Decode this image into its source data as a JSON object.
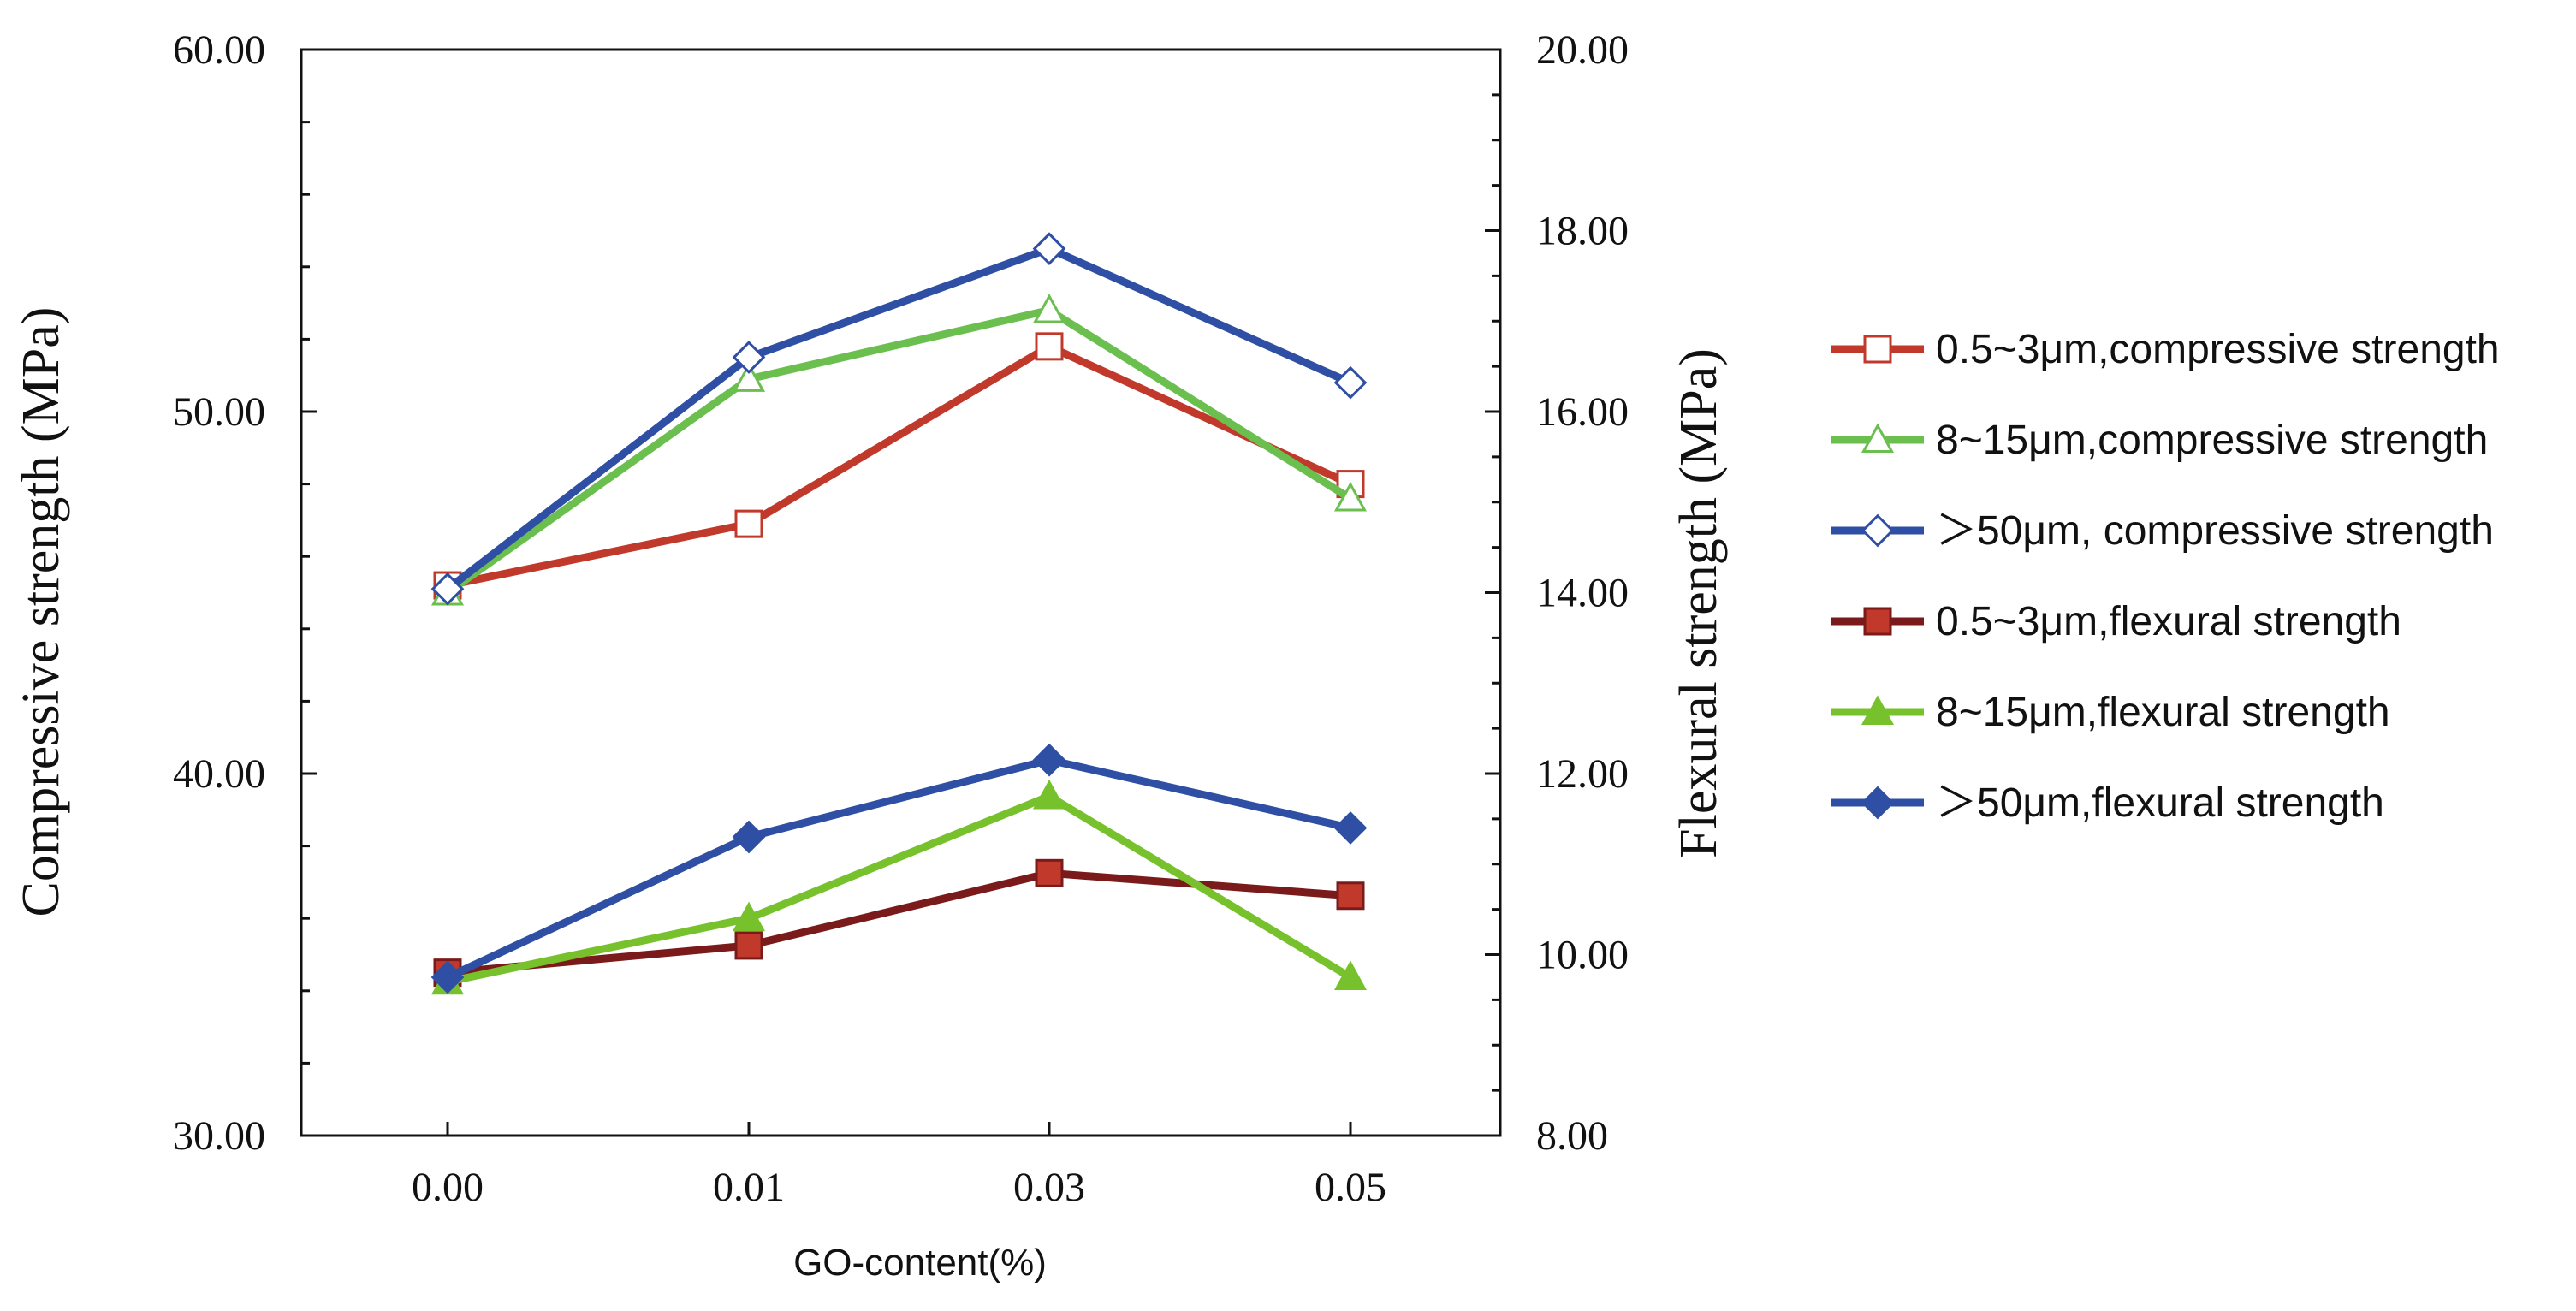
{
  "chart_data": {
    "type": "line",
    "xlabel": "GO-content(%)",
    "ylabel_left": "Compressive strength (MPa)",
    "ylabel_right": "Flexural  strength (MPa)",
    "categories": [
      "0.00",
      "0.01",
      "0.03",
      "0.05"
    ],
    "ylim_left": [
      30,
      60
    ],
    "ylim_right": [
      8,
      20
    ],
    "yticks_left": [
      "30.00",
      "40.00",
      "50.00",
      "60.00"
    ],
    "yticks_right": [
      "8.00",
      "10.00",
      "12.00",
      "14.00",
      "16.00",
      "18.00",
      "20.00"
    ],
    "grid": false,
    "legend_position": "right",
    "series": [
      {
        "name": "0.5~3μm,compressive strength",
        "axis": "left",
        "color": "#c0392b",
        "marker": "square",
        "filled": false,
        "values": [
          45.2,
          46.9,
          51.8,
          48.0
        ]
      },
      {
        "name": "8~15μm,compressive strength",
        "axis": "left",
        "color": "#6bbf4e",
        "marker": "triangle",
        "filled": false,
        "values": [
          45.0,
          50.9,
          52.8,
          47.6
        ]
      },
      {
        "name": "＞50μm, compressive strength",
        "axis": "left",
        "color": "#2e4fa3",
        "marker": "diamond",
        "filled": false,
        "values": [
          45.1,
          51.5,
          54.5,
          50.8
        ]
      },
      {
        "name": "0.5~3μm,flexural  strength",
        "axis": "right",
        "color": "#7a1a1a",
        "marker": "square",
        "filled": true,
        "fillColor": "#c0392b",
        "values": [
          9.8,
          10.1,
          10.9,
          10.65
        ]
      },
      {
        "name": "8~15μm,flexural  strength",
        "axis": "right",
        "color": "#77c12c",
        "marker": "triangle",
        "filled": true,
        "fillColor": "#77c12c",
        "values": [
          9.7,
          10.4,
          11.75,
          9.75
        ]
      },
      {
        "name": "＞50μm,flexural  strength",
        "axis": "right",
        "color": "#2e4fa3",
        "marker": "diamond",
        "filled": true,
        "fillColor": "#2e4fa3",
        "values": [
          9.75,
          11.3,
          12.15,
          11.4
        ]
      }
    ]
  }
}
